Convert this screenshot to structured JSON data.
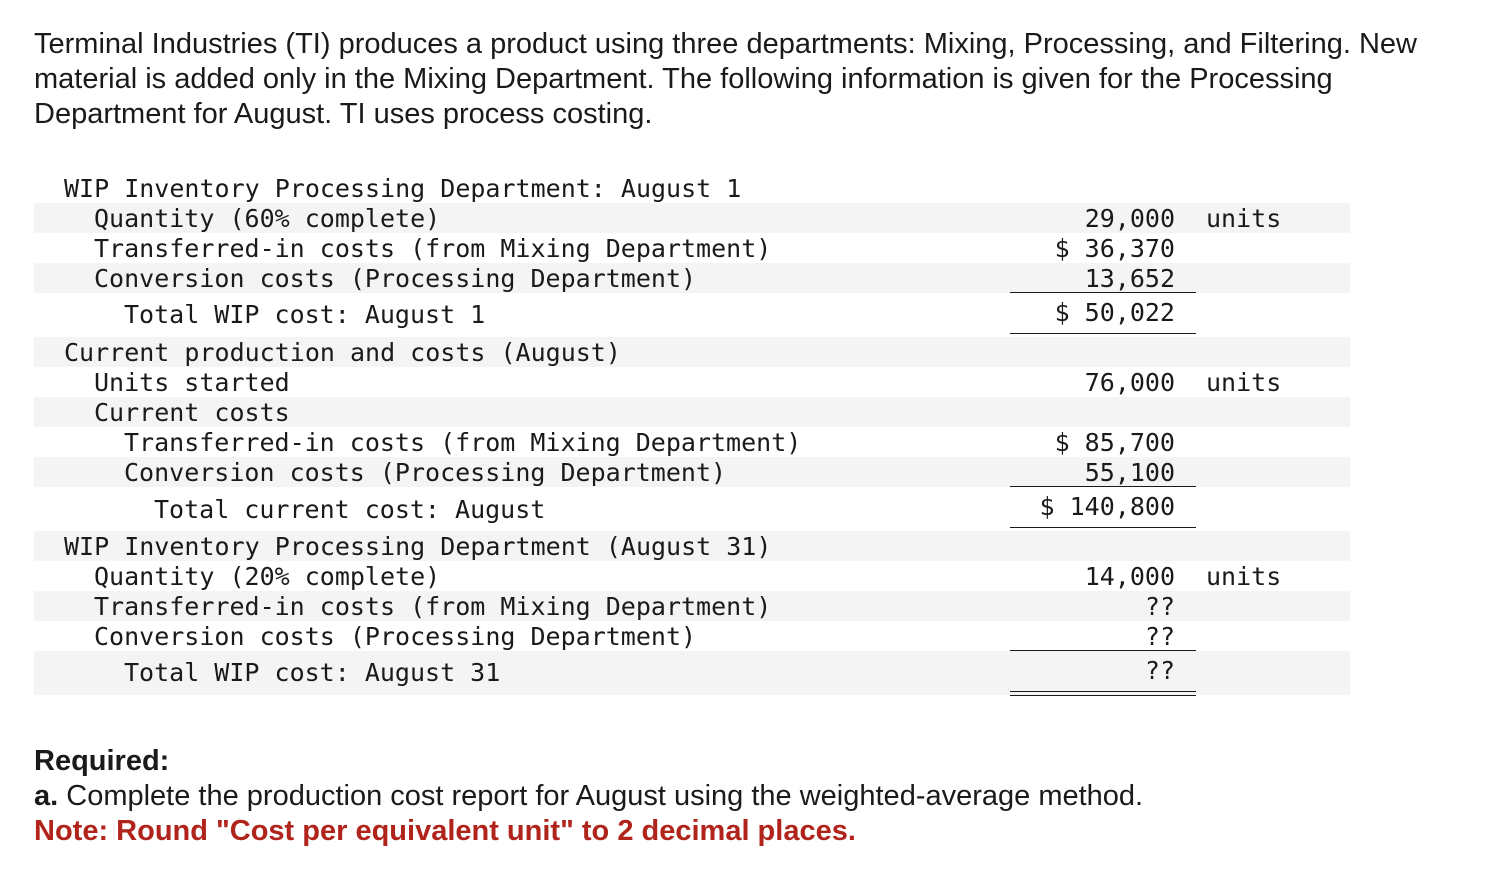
{
  "intro": "Terminal Industries (TI) produces a product using three departments: Mixing, Processing, and Filtering. New material is added only in the Mixing Department. The following information is given for the Processing Department for August. TI uses process costing.",
  "table": {
    "sec1_title": "WIP Inventory Processing Department: August 1",
    "sec1_qty_label": "Quantity (60% complete)",
    "sec1_qty_value": "29,000",
    "sec1_qty_unit": "units",
    "sec1_ti_label": "Transferred-in costs (from Mixing Department)",
    "sec1_ti_value": "$ 36,370",
    "sec1_cc_label": "Conversion costs (Processing Department)",
    "sec1_cc_value": "13,652",
    "sec1_total_label": "Total WIP cost: August 1",
    "sec1_total_value": "$ 50,022",
    "sec2_title": "Current production and costs (August)",
    "sec2_units_label": "Units started",
    "sec2_units_value": "76,000",
    "sec2_units_unit": "units",
    "sec2_costs_label": "Current costs",
    "sec2_ti_label": "Transferred-in costs (from Mixing Department)",
    "sec2_ti_value": "$ 85,700",
    "sec2_cc_label": "Conversion costs (Processing Department)",
    "sec2_cc_value": "55,100",
    "sec2_total_label": "Total current cost: August",
    "sec2_total_value": "$ 140,800",
    "sec3_title": "WIP Inventory Processing Department (August 31)",
    "sec3_qty_label": "Quantity (20% complete)",
    "sec3_qty_value": "14,000",
    "sec3_qty_unit": "units",
    "sec3_ti_label": "Transferred-in costs (from Mixing Department)",
    "sec3_ti_value": "??",
    "sec3_cc_label": "Conversion costs (Processing Department)",
    "sec3_cc_value": "??",
    "sec3_total_label": "Total WIP cost: August 31",
    "sec3_total_value": "??"
  },
  "required": {
    "heading": "Required:",
    "part_letter": "a.",
    "part_text": "Complete the production cost report for August using the weighted-average method.",
    "note": "Note: Round \"Cost per equivalent unit\" to 2 decimal places."
  },
  "colors": {
    "note_red": "#b0241b",
    "row_shade": "#f4f4f4"
  }
}
